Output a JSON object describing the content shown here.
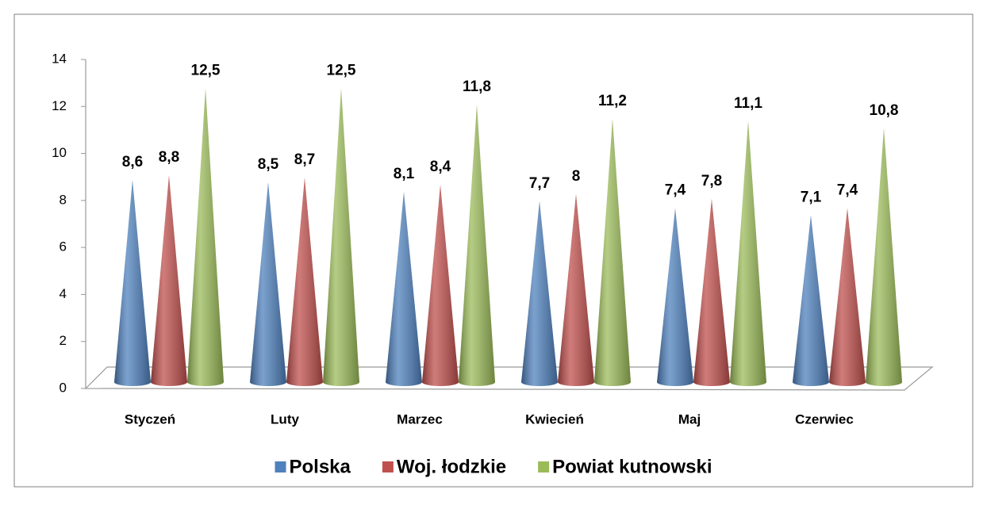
{
  "chart_data": {
    "type": "cone",
    "categories": [
      "Styczeń",
      "Luty",
      "Marzec",
      "Kwiecień",
      "Maj",
      "Czerwiec"
    ],
    "series": [
      {
        "name": "Polska",
        "color": "#4f81bd",
        "values": [
          8.6,
          8.5,
          8.1,
          7.7,
          7.4,
          7.1
        ],
        "value_labels": [
          "8,6",
          "8,5",
          "8,1",
          "7,7",
          "7,4",
          "7,1"
        ]
      },
      {
        "name": "Woj. łodzkie",
        "color": "#c0504d",
        "values": [
          8.8,
          8.7,
          8.4,
          8,
          7.8,
          7.4
        ],
        "value_labels": [
          "8,8",
          "8,7",
          "8,4",
          "8",
          "7,8",
          "7,4"
        ]
      },
      {
        "name": "Powiat kutnowski",
        "color": "#9bbb59",
        "values": [
          12.5,
          12.5,
          11.8,
          11.2,
          11.1,
          10.8
        ],
        "value_labels": [
          "12,5",
          "12,5",
          "11,8",
          "11,2",
          "11,1",
          "10,8"
        ]
      }
    ],
    "ylim": [
      0,
      14
    ],
    "yticks": [
      0,
      2,
      4,
      6,
      8,
      10,
      12,
      14
    ],
    "grid": false,
    "legend": "bottom"
  }
}
